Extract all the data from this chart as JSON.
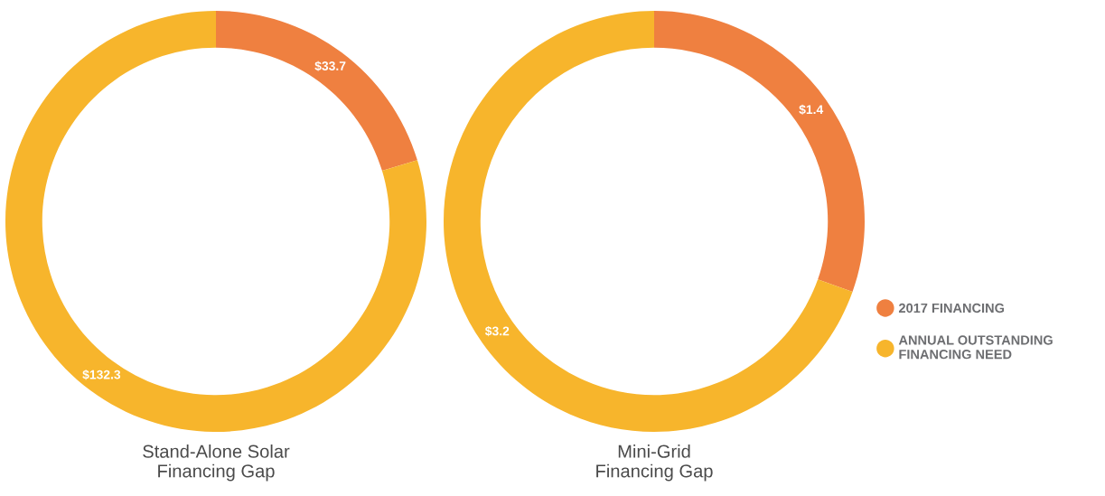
{
  "chart_data": [
    {
      "type": "donut",
      "title": "Stand-Alone Solar\nFinancing Gap",
      "categories": [
        "2017 FINANCING",
        "ANNUAL OUTSTANDING FINANCING NEED"
      ],
      "values": [
        33.7,
        132.3
      ],
      "colors": [
        "#ef8040",
        "#f7b52c"
      ],
      "value_labels": [
        "$33.7",
        "$132.3"
      ],
      "legend": "right"
    },
    {
      "type": "donut",
      "title": "Mini-Grid\nFinancing Gap",
      "categories": [
        null,
        null
      ],
      "values": [
        1.4,
        3.2
      ],
      "colors": [
        "#ef8040",
        "#f7b52c"
      ],
      "value_labels": [
        "$1.4",
        "$3.2"
      ],
      "legend": false
    }
  ]
}
